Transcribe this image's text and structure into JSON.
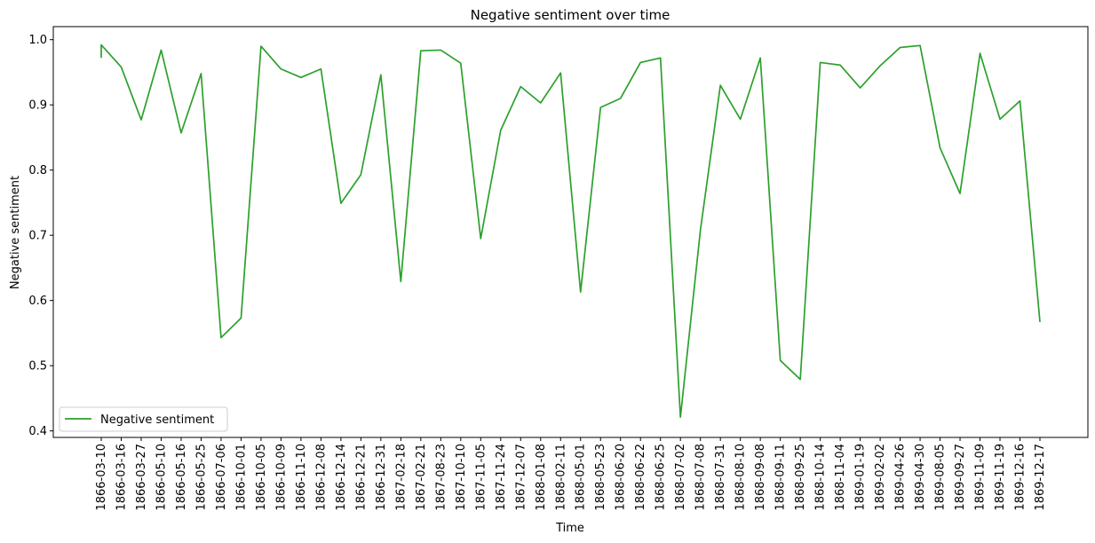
{
  "chart_data": {
    "type": "line",
    "title": "Negative sentiment over time",
    "xlabel": "Time",
    "ylabel": "Negative sentiment",
    "ylim": [
      0.39,
      1.02
    ],
    "yticks": [
      0.4,
      0.5,
      0.6,
      0.7,
      0.8,
      0.9,
      1.0
    ],
    "ytick_labels": [
      "0.4",
      "0.5",
      "0.6",
      "0.7",
      "0.8",
      "0.9",
      "1.0"
    ],
    "grid": false,
    "legend_position": "bottom-left",
    "categories": [
      "1866-03-10",
      "1866-03-16",
      "1866-03-27",
      "1866-05-10",
      "1866-05-16",
      "1866-05-25",
      "1866-07-06",
      "1866-10-01",
      "1866-10-05",
      "1866-10-09",
      "1866-11-10",
      "1866-12-08",
      "1866-12-14",
      "1866-12-21",
      "1866-12-31",
      "1867-02-18",
      "1867-02-21",
      "1867-08-23",
      "1867-10-10",
      "1867-11-05",
      "1867-11-24",
      "1867-12-07",
      "1868-01-08",
      "1868-02-11",
      "1868-05-01",
      "1868-05-23",
      "1868-06-20",
      "1868-06-22",
      "1868-06-25",
      "1868-07-02",
      "1868-07-08",
      "1868-07-31",
      "1868-08-10",
      "1868-09-08",
      "1868-09-11",
      "1868-09-25",
      "1868-10-14",
      "1868-11-04",
      "1869-01-19",
      "1869-02-02",
      "1869-04-26",
      "1869-04-30",
      "1869-08-05",
      "1869-09-27",
      "1869-11-09",
      "1869-11-19",
      "1869-12-16",
      "1869-12-17"
    ],
    "series": [
      {
        "name": "Negative sentiment",
        "color": "#2ca02c",
        "points": [
          [
            0,
            0.972
          ],
          [
            0,
            0.992
          ],
          [
            1,
            0.958
          ],
          [
            2,
            0.877
          ],
          [
            3,
            0.984
          ],
          [
            4,
            0.857
          ],
          [
            5,
            0.948
          ],
          [
            6,
            0.543
          ],
          [
            7,
            0.573
          ],
          [
            8,
            0.99
          ],
          [
            9,
            0.955
          ],
          [
            10,
            0.942
          ],
          [
            11,
            0.955
          ],
          [
            12,
            0.749
          ],
          [
            13,
            0.793
          ],
          [
            14,
            0.946
          ],
          [
            15,
            0.629
          ],
          [
            16,
            0.983
          ],
          [
            17,
            0.984
          ],
          [
            18,
            0.964
          ],
          [
            19,
            0.695
          ],
          [
            20,
            0.861
          ],
          [
            21,
            0.928
          ],
          [
            22,
            0.903
          ],
          [
            23,
            0.949
          ],
          [
            24,
            0.613
          ],
          [
            25,
            0.896
          ],
          [
            26,
            0.91
          ],
          [
            27,
            0.965
          ],
          [
            28,
            0.972
          ],
          [
            29,
            0.421
          ],
          [
            30,
            0.708
          ],
          [
            31,
            0.93
          ],
          [
            32,
            0.878
          ],
          [
            33,
            0.972
          ],
          [
            34,
            0.508
          ],
          [
            35,
            0.479
          ],
          [
            36,
            0.965
          ],
          [
            37,
            0.961
          ],
          [
            38,
            0.926
          ],
          [
            39,
            0.96
          ],
          [
            40,
            0.988
          ],
          [
            41,
            0.991
          ],
          [
            42,
            0.834
          ],
          [
            43,
            0.764
          ],
          [
            44,
            0.979
          ],
          [
            45,
            0.878
          ],
          [
            46,
            0.906
          ],
          [
            47,
            0.567
          ]
        ]
      }
    ]
  }
}
